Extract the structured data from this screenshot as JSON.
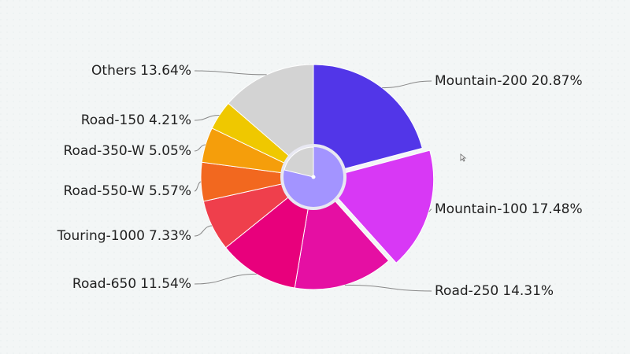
{
  "chart_data": {
    "type": "pie",
    "categories": [
      "Mountain-200",
      "Mountain-100",
      "Road-250",
      "Road-650",
      "Touring-1000",
      "Road-550-W",
      "Road-350-W",
      "Road-150",
      "Others"
    ],
    "values": [
      20.87,
      17.48,
      14.31,
      11.54,
      7.33,
      5.57,
      5.05,
      4.21,
      13.64
    ],
    "value_labels": [
      "20.87%",
      "17.48%",
      "14.31%",
      "11.54%",
      "7.33%",
      "5.57%",
      "5.05%",
      "4.21%",
      "13.64%"
    ],
    "colors": [
      "#5236e8",
      "#d838f5",
      "#e50fa3",
      "#e8007c",
      "#ef3f4c",
      "#f2681f",
      "#f59e0b",
      "#efc800",
      "#d3d3d3"
    ],
    "exploded": "Mountain-100"
  }
}
